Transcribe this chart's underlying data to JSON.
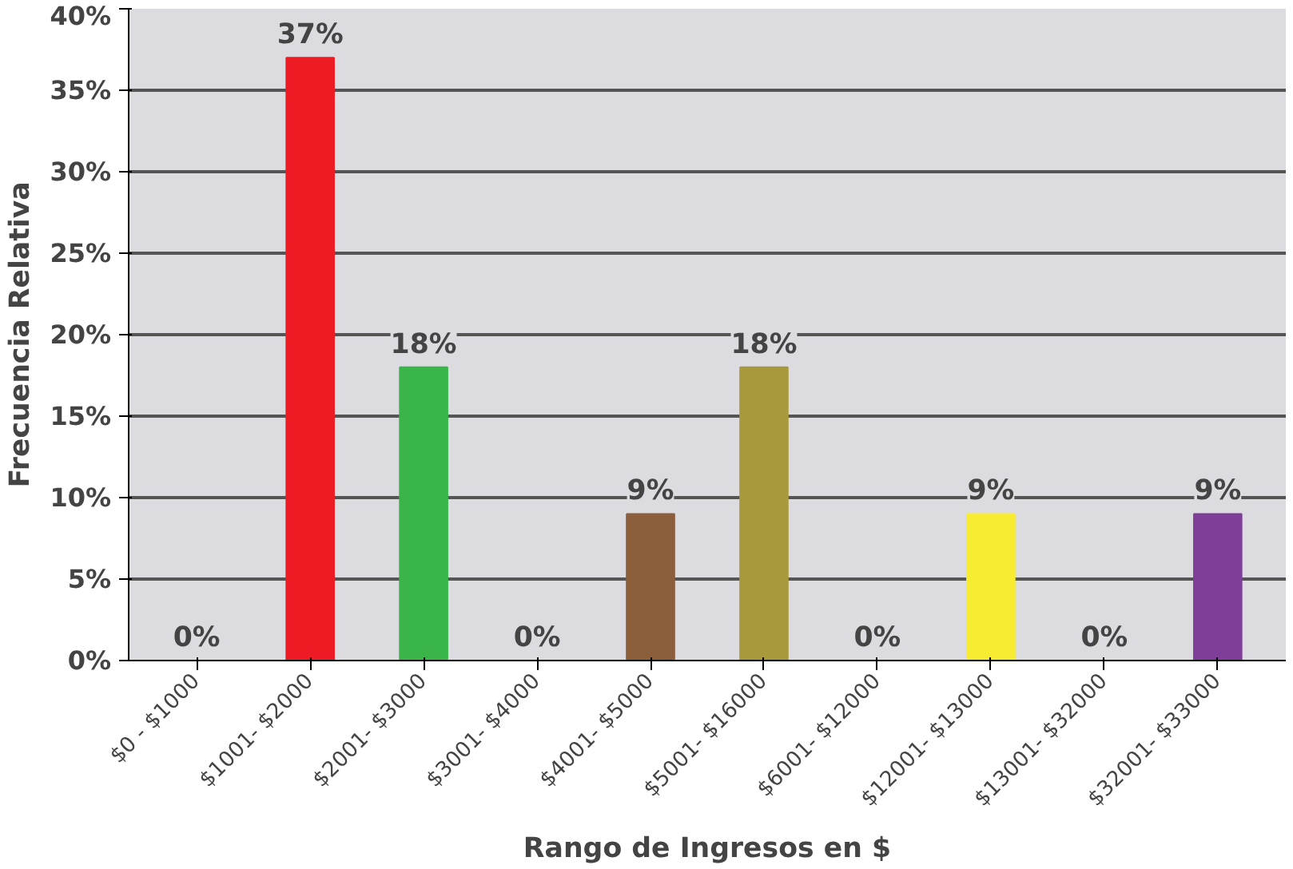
{
  "chart_data": {
    "type": "bar",
    "xlabel": "Rango de Ingresos en $",
    "ylabel": "Frecuencia Relativa",
    "categories": [
      "$0 - $1000",
      "$1001- $2000",
      "$2001- $3000",
      "$3001- $4000",
      "$4001- $5000",
      "$5001- $16000",
      "$6001- $12000",
      "$12001- $13000",
      "$13001- $32000",
      "$32001- $33000"
    ],
    "values": [
      0,
      37,
      18,
      0,
      9,
      18,
      0,
      9,
      0,
      9
    ],
    "value_labels": [
      "0%",
      "37%",
      "18%",
      "0%",
      "9%",
      "18%",
      "0%",
      "9%",
      "0%",
      "9%"
    ],
    "colors": [
      "#1a6a9a",
      "#ed1c24",
      "#39b54a",
      "#662d91",
      "#8b5e3c",
      "#a89a3c",
      "#29abe2",
      "#f7ec31",
      "#f15a24",
      "#7f3f98"
    ],
    "ylim": [
      0,
      40
    ],
    "yticks": [
      {
        "value": 0,
        "label": "0%"
      },
      {
        "value": 5,
        "label": "5%"
      },
      {
        "value": 10,
        "label": "10%"
      },
      {
        "value": 15,
        "label": "15%"
      },
      {
        "value": 20,
        "label": "20%"
      },
      {
        "value": 25,
        "label": "25%"
      },
      {
        "value": 30,
        "label": "30%"
      },
      {
        "value": 35,
        "label": "35%"
      },
      {
        "value": 40,
        "label": "40%"
      }
    ],
    "grid": "y"
  }
}
